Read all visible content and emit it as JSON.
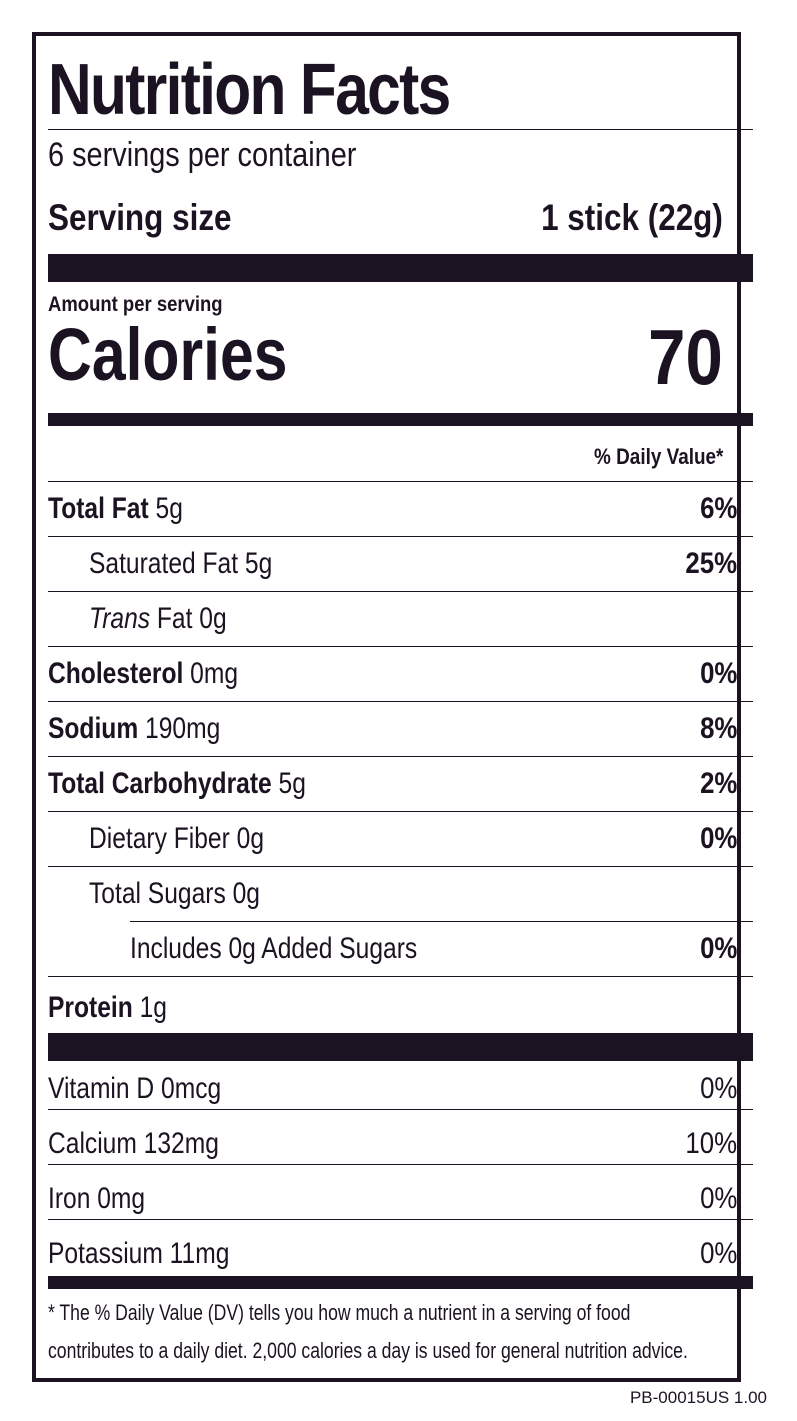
{
  "title": "Nutrition Facts",
  "servings_per_container": "6 servings per container",
  "serving_size": {
    "label": "Serving size",
    "value": "1 stick (22g)"
  },
  "amount_per_serving": "Amount per serving",
  "calories": {
    "label": "Calories",
    "value": "70"
  },
  "dv_header": "% Daily Value*",
  "nutrients": {
    "total_fat": {
      "name": "Total Fat",
      "amount": " 5g",
      "dv": "6%"
    },
    "saturated_fat": {
      "name": "Saturated Fat 5g",
      "dv": "25%"
    },
    "trans_fat": {
      "name_italic": "Trans",
      "name": " Fat 0g"
    },
    "cholesterol": {
      "name": "Cholesterol",
      "amount": " 0mg",
      "dv": "0%"
    },
    "sodium": {
      "name": "Sodium",
      "amount": " 190mg",
      "dv": "8%"
    },
    "total_carb": {
      "name": "Total Carbohydrate",
      "amount": " 5g",
      "dv": "2%"
    },
    "dietary_fiber": {
      "name": "Dietary Fiber 0g",
      "dv": "0%"
    },
    "total_sugars": {
      "name": "Total Sugars 0g"
    },
    "added_sugars": {
      "name": "Includes 0g Added Sugars",
      "dv": "0%"
    },
    "protein": {
      "name": "Protein",
      "amount": " 1g"
    }
  },
  "vitamins": {
    "vitamin_d": {
      "name": "Vitamin D 0mcg",
      "dv": "0%"
    },
    "calcium": {
      "name": "Calcium 132mg",
      "dv": "10%"
    },
    "iron": {
      "name": "Iron 0mg",
      "dv": "0%"
    },
    "potassium": {
      "name": "Potassium 11mg",
      "dv": "0%"
    }
  },
  "footnote": {
    "line1": "* The % Daily Value (DV) tells you how much a nutrient in a serving of food",
    "line2": "contributes to a daily diet. 2,000 calories a day is used for general nutrition advice."
  },
  "product_code": "PB-00015US 1.00"
}
